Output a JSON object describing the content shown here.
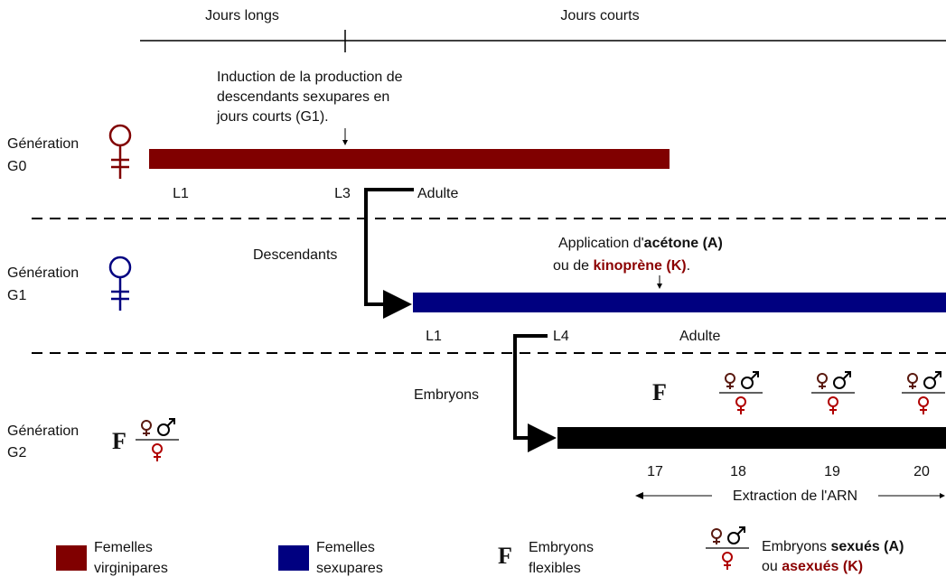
{
  "timeline": {
    "long_days": "Jours longs",
    "short_days": "Jours courts"
  },
  "induction_note": [
    "Induction de la production de",
    "descendants sexupares en",
    "jours courts (G1)."
  ],
  "application_note": {
    "line1": [
      "Application d'",
      "acétone (A)"
    ],
    "line2": [
      "ou de ",
      "kinoprène (K)",
      "."
    ]
  },
  "generations": [
    {
      "label": [
        "Génération",
        "G0"
      ],
      "stages": [
        "L1",
        "L3",
        "Adulte"
      ]
    },
    {
      "label": [
        "Génération",
        "G1"
      ],
      "stages": [
        "L1",
        "L4",
        "Adulte"
      ]
    },
    {
      "label": [
        "Génération",
        "G2"
      ],
      "days": [
        17,
        18,
        19,
        20
      ]
    }
  ],
  "transitions": [
    "Descendants",
    "Embryons"
  ],
  "flexible_symbol": "F",
  "extraction": "Extraction de l'ARN",
  "legend": {
    "virginiparous": [
      "Femelles",
      "virginipares"
    ],
    "sexuparous": [
      "Femelles",
      "sexupares"
    ],
    "flexible": [
      "Embryons",
      "flexibles"
    ],
    "embryo_line1": [
      "Embryons ",
      "sexués (A)"
    ],
    "embryo_line2": [
      "ou ",
      "asexués (K)"
    ]
  }
}
